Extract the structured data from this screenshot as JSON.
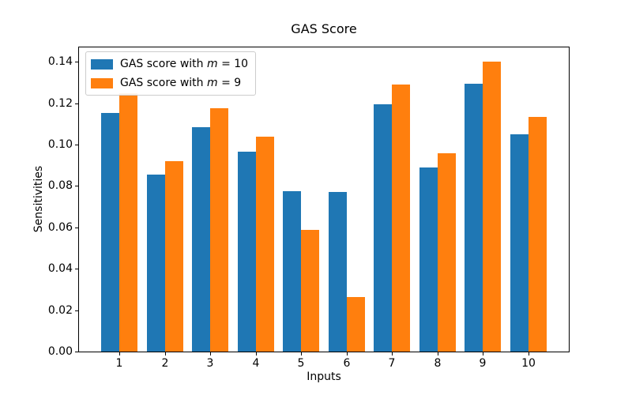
{
  "chart_data": {
    "type": "bar",
    "title": "GAS Score",
    "xlabel": "Inputs",
    "ylabel": "Sensitivities",
    "categories": [
      "1",
      "2",
      "3",
      "4",
      "5",
      "6",
      "7",
      "8",
      "9",
      "10"
    ],
    "series": [
      {
        "name_prefix": "GAS score with ",
        "name_var": "m",
        "name_suffix": " = 10",
        "color": "#1f77b4",
        "values": [
          0.1155,
          0.0855,
          0.1085,
          0.0965,
          0.0775,
          0.077,
          0.1195,
          0.089,
          0.1295,
          0.105
        ]
      },
      {
        "name_prefix": "GAS score with ",
        "name_var": "m",
        "name_suffix": " = 9",
        "color": "#ff7f0e",
        "values": [
          0.125,
          0.092,
          0.1175,
          0.104,
          0.059,
          0.0265,
          0.129,
          0.096,
          0.14,
          0.1135
        ]
      }
    ],
    "bar_width": 0.4,
    "xlim": [
      0.11,
      10.89
    ],
    "ylim": [
      0,
      0.147
    ],
    "yticks": [
      0,
      0.02,
      0.04,
      0.06,
      0.08,
      0.1,
      0.12,
      0.14
    ],
    "ytick_labels": [
      "0.00",
      "0.02",
      "0.04",
      "0.06",
      "0.08",
      "0.10",
      "0.12",
      "0.14"
    ],
    "legend_position": "upper left",
    "grid": false,
    "colors": {
      "spine": "#000000",
      "text": "#000000",
      "legend_border": "#cccccc",
      "background": "#ffffff"
    }
  }
}
